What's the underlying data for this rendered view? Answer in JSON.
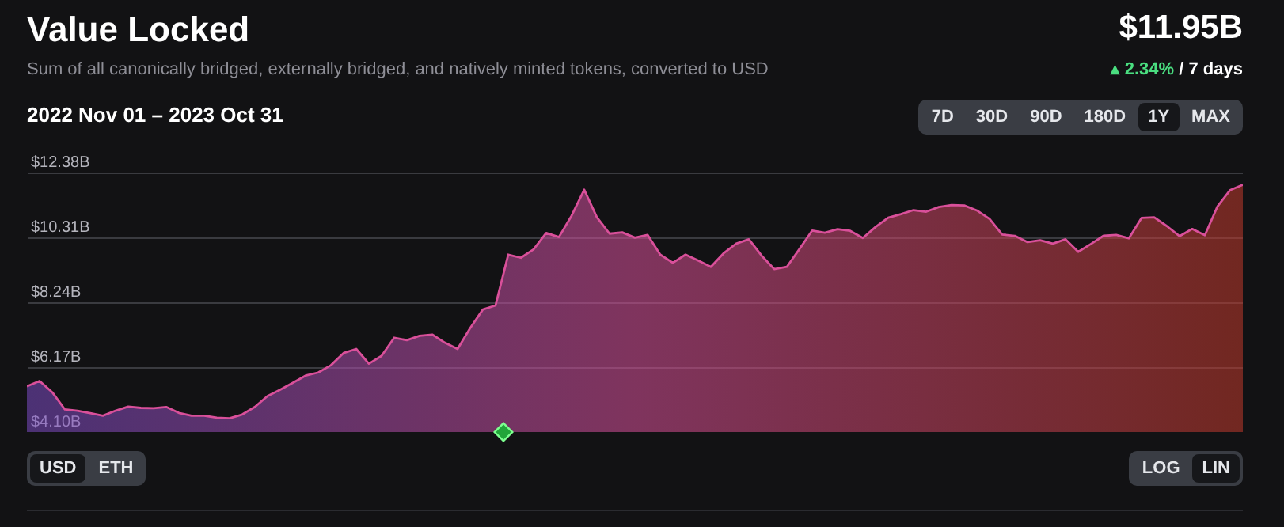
{
  "chart_data": {
    "type": "area",
    "title": "Value Locked",
    "subtitle": "Sum of all canonically bridged, externally bridged, and natively minted tokens, converted to USD",
    "annotations": [
      "$11.95B",
      "▴ 2.34%",
      "/ 7 days",
      "2022 Nov 01 – 2023 Oct 31",
      "7D",
      "30D",
      "90D",
      "180D",
      "1Y",
      "MAX",
      "USD",
      "ETH",
      "LOG",
      "LIN"
    ],
    "categories": [
      null,
      null,
      null,
      null,
      null,
      null,
      null,
      null,
      null,
      null,
      null,
      null,
      null,
      null,
      null,
      null,
      null,
      null,
      null,
      null,
      null,
      null,
      null,
      null,
      null,
      null,
      null,
      null,
      null,
      null,
      null,
      null,
      null,
      null,
      null,
      null,
      null,
      null,
      null,
      null,
      null,
      null,
      null,
      null,
      null,
      null,
      null,
      null,
      null,
      null,
      null,
      null,
      null,
      null,
      null,
      null,
      null,
      null,
      null,
      null,
      null,
      null,
      null,
      null,
      null,
      null,
      null,
      null,
      null,
      null,
      null,
      null,
      null,
      null,
      null,
      null,
      null,
      null,
      null,
      null,
      null,
      null,
      null,
      null,
      null,
      null,
      null,
      null,
      null,
      null,
      null,
      null,
      null,
      null,
      null,
      null,
      null
    ],
    "ylim": [
      4.1,
      12.38
    ],
    "yticks": [
      {
        "value": 4.1,
        "label": "$4.10B"
      },
      {
        "value": 6.17,
        "label": "$6.17B"
      },
      {
        "value": 8.24,
        "label": "$8.24B"
      },
      {
        "value": 10.31,
        "label": "$10.31B"
      },
      {
        "value": 12.38,
        "label": "$12.38B"
      }
    ],
    "grid": "y",
    "tick_labels": "y",
    "series": [
      {
        "color": "#d9509a",
        "values": [
          5.56,
          5.73,
          5.37,
          4.82,
          4.78,
          4.7,
          4.62,
          4.78,
          4.91,
          4.87,
          4.86,
          4.9,
          4.71,
          4.62,
          4.62,
          4.56,
          4.54,
          4.66,
          4.9,
          5.25,
          5.45,
          5.67,
          5.9,
          6.0,
          6.23,
          6.62,
          6.75,
          6.28,
          6.53,
          7.11,
          7.03,
          7.17,
          7.21,
          6.95,
          6.75,
          7.42,
          8.01,
          8.14,
          9.76,
          9.66,
          9.93,
          10.45,
          10.32,
          11.0,
          11.83,
          10.95,
          10.43,
          10.47,
          10.3,
          10.39,
          9.76,
          9.5,
          9.76,
          9.57,
          9.37,
          9.8,
          10.11,
          10.25,
          9.73,
          9.3,
          9.37,
          9.94,
          10.53,
          10.46,
          10.57,
          10.52,
          10.29,
          10.64,
          10.94,
          11.05,
          11.18,
          11.13,
          11.28,
          11.34,
          11.33,
          11.17,
          10.9,
          10.4,
          10.36,
          10.16,
          10.22,
          10.11,
          10.25,
          9.85,
          10.1,
          10.36,
          10.39,
          10.28,
          10.93,
          10.95,
          10.67,
          10.35,
          10.58,
          10.38,
          11.3,
          11.82,
          11.99
        ]
      }
    ]
  }
}
